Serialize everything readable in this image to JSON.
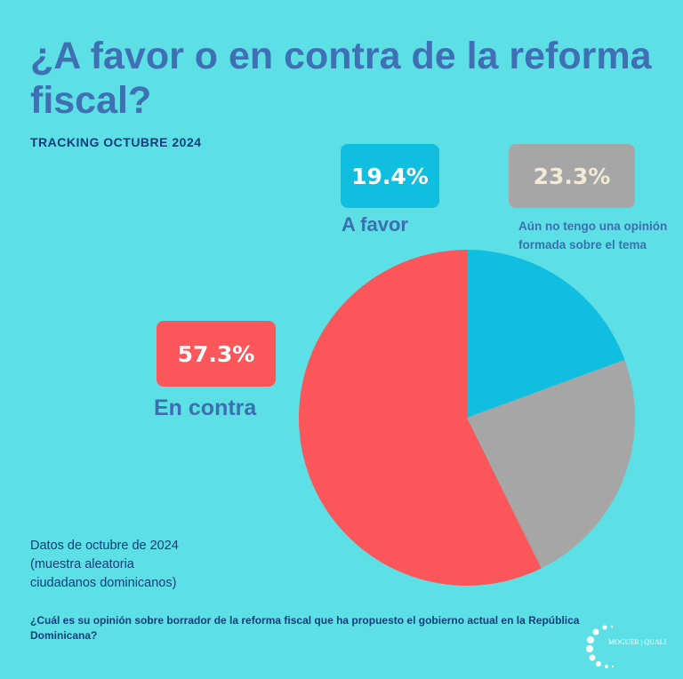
{
  "title": "¿A favor o en contra de la reforma fiscal?",
  "subtitle": "TRACKING OCTUBRE 2024",
  "note": [
    "Datos de octubre de 2024",
    "(muestra aleatoria",
    "ciudadanos  dominicanos)"
  ],
  "question": "¿Cuál es su opinión sobre borrador de la reforma fiscal  que ha propuesto el gobierno actual en la República Dominicana?",
  "logo": "MOGUER | QUALI",
  "chart_data": {
    "type": "pie",
    "start": "top",
    "direction": "clockwise",
    "slices": [
      {
        "label": "A favor",
        "value": 19.4,
        "value_label": "19.4%",
        "color": "#10bfe0"
      },
      {
        "label": "Aún no tengo una opinión formada sobre el tema",
        "value": 23.3,
        "value_label": "23.3%",
        "color": "#a6a6a6"
      },
      {
        "label": "En contra",
        "value": 57.3,
        "value_label": "57.3%",
        "color": "#fb575a"
      }
    ]
  }
}
